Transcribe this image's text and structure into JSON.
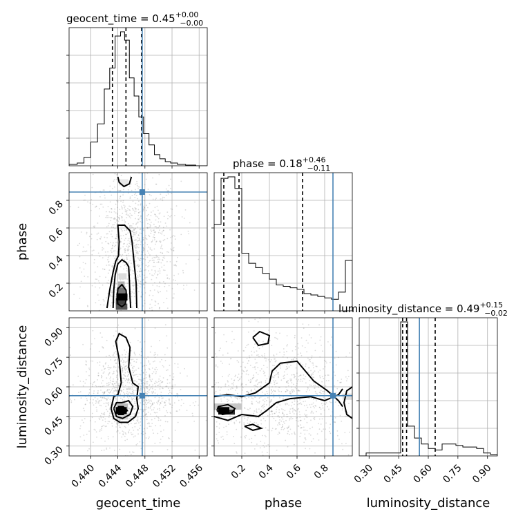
{
  "chart_data": {
    "type": "corner",
    "parameters": [
      {
        "name": "geocent_time",
        "median": "0.45",
        "plus": "+0.00",
        "minus": "−0.00",
        "range": [
          0.4368,
          0.4572
        ],
        "ticks": [
          0.44,
          0.444,
          0.448,
          0.452,
          0.456
        ],
        "tick_labels": [
          "0.440",
          "0.444",
          "0.448",
          "0.452",
          "0.456"
        ],
        "truth": 0.4476,
        "quantiles": [
          0.4432,
          0.4452,
          0.4475
        ],
        "hist_edges": [
          0.4368,
          0.438,
          0.439,
          0.44,
          0.441,
          0.442,
          0.4428,
          0.4436,
          0.4444,
          0.445,
          0.4457,
          0.4464,
          0.4471,
          0.4478,
          0.4486,
          0.4494,
          0.4502,
          0.451,
          0.4518,
          0.4528,
          0.454,
          0.4555,
          0.4572
        ],
        "hist_counts": [
          0.01,
          0.02,
          0.06,
          0.17,
          0.3,
          0.55,
          0.7,
          0.93,
          0.96,
          0.9,
          0.63,
          0.5,
          0.35,
          0.23,
          0.15,
          0.08,
          0.05,
          0.03,
          0.02,
          0.01,
          0.005,
          0.0
        ]
      },
      {
        "name": "phase",
        "median": "0.18",
        "plus": "+0.46",
        "minus": "−0.11",
        "range": [
          0.0,
          1.0
        ],
        "ticks": [
          0.2,
          0.4,
          0.6,
          0.8
        ],
        "tick_labels": [
          "0.2",
          "0.4",
          "0.6",
          "0.8"
        ],
        "truth": 0.86,
        "quantiles": [
          0.07,
          0.18,
          0.64
        ],
        "hist_edges": [
          0.0,
          0.05,
          0.1,
          0.15,
          0.2,
          0.25,
          0.3,
          0.35,
          0.4,
          0.45,
          0.5,
          0.55,
          0.6,
          0.65,
          0.7,
          0.75,
          0.8,
          0.85,
          0.9,
          0.95,
          1.0
        ],
        "hist_counts": [
          0.6,
          0.92,
          0.93,
          0.85,
          0.4,
          0.33,
          0.3,
          0.26,
          0.22,
          0.18,
          0.17,
          0.16,
          0.15,
          0.12,
          0.11,
          0.1,
          0.09,
          0.08,
          0.13,
          0.35
        ]
      },
      {
        "name": "luminosity_distance",
        "median": "0.49",
        "plus": "+0.15",
        "minus": "−0.02",
        "range": [
          0.25,
          0.95
        ],
        "ticks": [
          0.3,
          0.45,
          0.6,
          0.75,
          0.9
        ],
        "tick_labels": [
          "0.30",
          "0.45",
          "0.60",
          "0.75",
          "0.90"
        ],
        "truth": 0.555,
        "quantiles": [
          0.47,
          0.49,
          0.635
        ],
        "hist_edges": [
          0.25,
          0.285,
          0.32,
          0.355,
          0.39,
          0.425,
          0.46,
          0.495,
          0.53,
          0.565,
          0.6,
          0.635,
          0.67,
          0.705,
          0.74,
          0.775,
          0.81,
          0.845,
          0.88,
          0.915,
          0.95
        ],
        "hist_counts": [
          0.0,
          0.02,
          0.02,
          0.02,
          0.02,
          0.02,
          0.9,
          0.2,
          0.12,
          0.08,
          0.05,
          0.04,
          0.08,
          0.08,
          0.07,
          0.06,
          0.06,
          0.05,
          0.02,
          0.01
        ]
      }
    ],
    "panels_2d": [
      {
        "x": "geocent_time",
        "y": "phase",
        "peak": [
          0.4446,
          0.1
        ],
        "shade_rows": [
          {
            "y": 0.03,
            "x": [
              0.4437,
              0.4454
            ],
            "level": 0.75
          },
          {
            "y": 0.07,
            "x": [
              0.4437,
              0.4452
            ],
            "level": 0.85
          },
          {
            "y": 0.11,
            "x": [
              0.4438,
              0.4452
            ],
            "level": 0.9
          },
          {
            "y": 0.15,
            "x": [
              0.4439,
              0.4451
            ],
            "level": 0.6
          },
          {
            "y": 0.19,
            "x": [
              0.444,
              0.445
            ],
            "level": 0.35
          },
          {
            "y": 0.25,
            "x": [
              0.4441,
              0.4453
            ],
            "level": 0.15
          },
          {
            "y": 0.93,
            "x": [
              0.4442,
              0.4455
            ],
            "level": 0.1
          }
        ],
        "contours": [
          [
            [
              0.4439,
              0.1
            ],
            [
              0.444,
              0.05
            ],
            [
              0.4446,
              0.03
            ],
            [
              0.4451,
              0.05
            ],
            [
              0.4453,
              0.1
            ],
            [
              0.4452,
              0.15
            ],
            [
              0.4446,
              0.19
            ],
            [
              0.444,
              0.16
            ],
            [
              0.4439,
              0.1
            ]
          ],
          [
            [
              0.4433,
              0.02
            ],
            [
              0.4434,
              0.15
            ],
            [
              0.4436,
              0.26
            ],
            [
              0.444,
              0.34
            ],
            [
              0.4446,
              0.37
            ],
            [
              0.4452,
              0.35
            ],
            [
              0.4456,
              0.32
            ],
            [
              0.4457,
              0.22
            ],
            [
              0.4458,
              0.1
            ],
            [
              0.4459,
              0.02
            ]
          ],
          [
            [
              0.4424,
              0.02
            ],
            [
              0.4428,
              0.15
            ],
            [
              0.4433,
              0.28
            ],
            [
              0.4437,
              0.36
            ],
            [
              0.4441,
              0.4
            ],
            [
              0.4442,
              0.5
            ],
            [
              0.444,
              0.62
            ],
            [
              0.445,
              0.62
            ],
            [
              0.4458,
              0.58
            ],
            [
              0.4461,
              0.5
            ],
            [
              0.4463,
              0.4
            ],
            [
              0.4465,
              0.3
            ],
            [
              0.4467,
              0.2
            ],
            [
              0.4468,
              0.02
            ]
          ],
          [
            [
              0.444,
              0.97
            ],
            [
              0.4442,
              0.93
            ],
            [
              0.4449,
              0.9
            ],
            [
              0.4457,
              0.92
            ],
            [
              0.446,
              0.97
            ]
          ]
        ],
        "scatter": {
          "center": [
            0.4462,
            0.45
          ],
          "spread": [
            0.0035,
            0.28
          ],
          "count": 1100
        }
      },
      {
        "x": "geocent_time",
        "y": "luminosity_distance",
        "peak": [
          0.4445,
          0.48
        ],
        "shade_rows": [
          {
            "y": 0.475,
            "x": [
              0.444,
              0.4452
            ],
            "level": 0.9
          },
          {
            "y": 0.5,
            "x": [
              0.4438,
              0.4455
            ],
            "level": 0.3
          },
          {
            "y": 0.45,
            "x": [
              0.4438,
              0.4455
            ],
            "level": 0.2
          }
        ],
        "contours": [
          [
            [
              0.4438,
              0.48
            ],
            [
              0.4441,
              0.46
            ],
            [
              0.4448,
              0.46
            ],
            [
              0.4454,
              0.48
            ],
            [
              0.4448,
              0.5
            ],
            [
              0.4441,
              0.5
            ],
            [
              0.4438,
              0.48
            ]
          ],
          [
            [
              0.4434,
              0.49
            ],
            [
              0.4438,
              0.45
            ],
            [
              0.4447,
              0.44
            ],
            [
              0.4458,
              0.46
            ],
            [
              0.4462,
              0.5
            ],
            [
              0.4456,
              0.53
            ],
            [
              0.4446,
              0.52
            ],
            [
              0.4438,
              0.52
            ],
            [
              0.4434,
              0.49
            ]
          ],
          [
            [
              0.443,
              0.49
            ],
            [
              0.4434,
              0.44
            ],
            [
              0.4443,
              0.42
            ],
            [
              0.4455,
              0.42
            ],
            [
              0.4466,
              0.45
            ],
            [
              0.447,
              0.49
            ],
            [
              0.4468,
              0.54
            ],
            [
              0.447,
              0.6
            ],
            [
              0.4462,
              0.62
            ],
            [
              0.4456,
              0.7
            ],
            [
              0.4458,
              0.8
            ],
            [
              0.4452,
              0.85
            ],
            [
              0.4442,
              0.87
            ],
            [
              0.4437,
              0.83
            ],
            [
              0.4442,
              0.74
            ],
            [
              0.4445,
              0.62
            ],
            [
              0.444,
              0.56
            ],
            [
              0.4434,
              0.55
            ],
            [
              0.443,
              0.49
            ]
          ]
        ],
        "scatter": {
          "center": [
            0.4455,
            0.56
          ],
          "spread": [
            0.0035,
            0.13
          ],
          "count": 1100
        }
      },
      {
        "x": "phase",
        "y": "luminosity_distance",
        "peak": [
          0.07,
          0.48
        ],
        "shade_rows": [
          {
            "y": 0.475,
            "x": [
              0.03,
              0.15
            ],
            "level": 0.9
          },
          {
            "y": 0.5,
            "x": [
              0.0,
              0.2
            ],
            "level": 0.25
          },
          {
            "y": 0.55,
            "x": [
              0.93,
              1.0
            ],
            "level": 0.15
          }
        ],
        "contours": [
          [
            [
              0.02,
              0.48
            ],
            [
              0.06,
              0.46
            ],
            [
              0.13,
              0.47
            ],
            [
              0.15,
              0.49
            ],
            [
              0.1,
              0.51
            ],
            [
              0.03,
              0.5
            ],
            [
              0.02,
              0.48
            ]
          ],
          [
            [
              0.0,
              0.45
            ],
            [
              0.1,
              0.43
            ],
            [
              0.2,
              0.46
            ],
            [
              0.32,
              0.45
            ],
            [
              0.38,
              0.48
            ],
            [
              0.45,
              0.52
            ],
            [
              0.55,
              0.54
            ],
            [
              0.7,
              0.55
            ],
            [
              0.8,
              0.53
            ],
            [
              0.9,
              0.56
            ],
            [
              0.93,
              0.59
            ]
          ],
          [
            [
              0.0,
              0.55
            ],
            [
              0.1,
              0.56
            ],
            [
              0.2,
              0.55
            ],
            [
              0.3,
              0.57
            ],
            [
              0.4,
              0.62
            ],
            [
              0.42,
              0.68
            ],
            [
              0.48,
              0.72
            ],
            [
              0.6,
              0.73
            ],
            [
              0.66,
              0.68
            ],
            [
              0.72,
              0.63
            ],
            [
              0.82,
              0.58
            ],
            [
              0.9,
              0.53
            ],
            [
              0.93,
              0.5
            ]
          ],
          [
            [
              0.28,
              0.85
            ],
            [
              0.32,
              0.81
            ],
            [
              0.39,
              0.82
            ],
            [
              0.4,
              0.86
            ],
            [
              0.33,
              0.88
            ],
            [
              0.28,
              0.85
            ]
          ],
          [
            [
              0.22,
              0.4
            ],
            [
              0.28,
              0.38
            ],
            [
              0.34,
              0.39
            ],
            [
              0.28,
              0.41
            ],
            [
              0.22,
              0.4
            ]
          ],
          [
            [
              1.0,
              0.44
            ],
            [
              0.96,
              0.46
            ],
            [
              0.94,
              0.52
            ],
            [
              0.96,
              0.58
            ],
            [
              1.0,
              0.6
            ]
          ]
        ],
        "scatter": {
          "center": [
            0.45,
            0.56
          ],
          "spread": [
            0.3,
            0.15
          ],
          "count": 1100
        }
      }
    ]
  }
}
